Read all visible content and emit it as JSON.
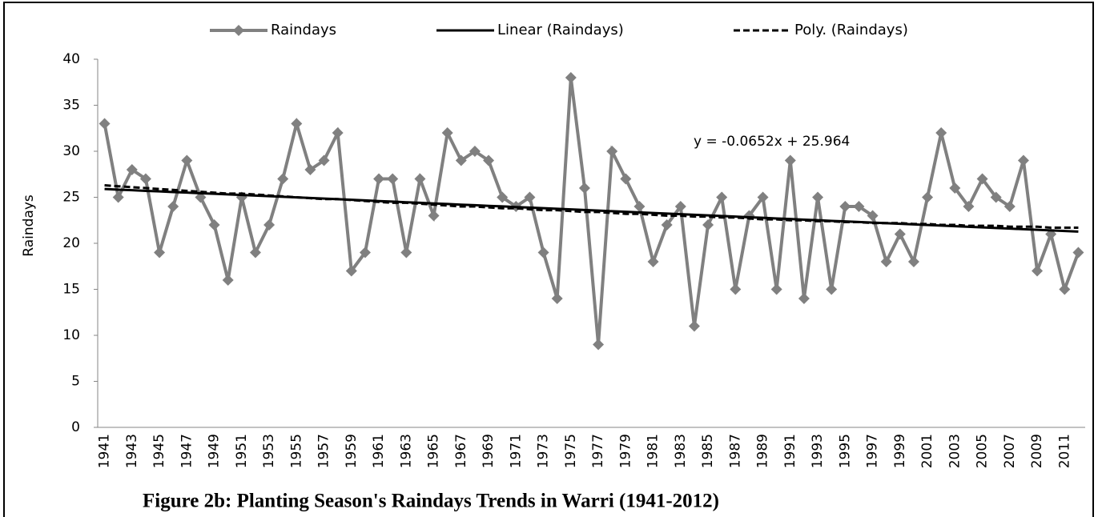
{
  "chart_data": {
    "type": "line",
    "title": "Figure 2b: Planting Season's Raindays Trends in Warri (1941-2012)",
    "y_label": "Raindays",
    "annotation": "y = -0.0652x + 25.964",
    "categories": [
      "1941",
      null,
      "1943",
      null,
      "1945",
      null,
      "1947",
      null,
      "1949",
      null,
      "1951",
      null,
      "1953",
      null,
      "1955",
      null,
      "1957",
      null,
      "1959",
      null,
      "1961",
      null,
      "1963",
      null,
      "1965",
      null,
      "1967",
      null,
      "1969",
      null,
      "1971",
      null,
      "1973",
      null,
      "1975",
      null,
      "1977",
      null,
      "1979",
      null,
      "1981",
      null,
      "1983",
      null,
      "1985",
      null,
      "1987",
      null,
      "1989",
      null,
      "1991",
      null,
      "1993",
      null,
      "1995",
      null,
      "1997",
      null,
      "1999",
      null,
      "2001",
      null,
      "2003",
      null,
      "2005",
      null,
      "2007",
      null,
      "2009",
      null,
      "2011",
      null
    ],
    "series": [
      {
        "name": "Raindays",
        "color": "#808080",
        "style": "solid",
        "marker": "diamond",
        "values": [
          33,
          25,
          28,
          27,
          19,
          24,
          29,
          25,
          22,
          16,
          25,
          19,
          22,
          27,
          33,
          28,
          29,
          32,
          17,
          19,
          27,
          27,
          19,
          27,
          23,
          32,
          29,
          30,
          29,
          25,
          24,
          25,
          19,
          14,
          38,
          26,
          9,
          30,
          27,
          24,
          18,
          22,
          24,
          11,
          22,
          25,
          15,
          23,
          25,
          15,
          29,
          14,
          25,
          15,
          24,
          24,
          23,
          18,
          21,
          18,
          25,
          32,
          26,
          24,
          27,
          25,
          24,
          29,
          17,
          21,
          15,
          19
        ]
      },
      {
        "name": "Linear (Raindays)",
        "color": "#000000",
        "style": "solid",
        "values": [
          25.9,
          25.83,
          25.77,
          25.7,
          25.64,
          25.57,
          25.51,
          25.44,
          25.38,
          25.31,
          25.25,
          25.18,
          25.12,
          25.05,
          24.99,
          24.92,
          24.86,
          24.79,
          24.73,
          24.66,
          24.59,
          24.53,
          24.46,
          24.4,
          24.33,
          24.27,
          24.2,
          24.14,
          24.07,
          24.01,
          23.94,
          23.88,
          23.81,
          23.75,
          23.68,
          23.62,
          23.55,
          23.49,
          23.42,
          23.36,
          23.29,
          23.23,
          23.16,
          23.1,
          23.03,
          22.97,
          22.9,
          22.83,
          22.77,
          22.7,
          22.64,
          22.57,
          22.51,
          22.44,
          22.38,
          22.31,
          22.25,
          22.18,
          22.12,
          22.05,
          21.99,
          21.92,
          21.86,
          21.79,
          21.73,
          21.66,
          21.6,
          21.53,
          21.47,
          21.4,
          21.34,
          21.27
        ]
      },
      {
        "name": "Poly. (Raindays)",
        "color": "#000000",
        "style": "dashed",
        "values": [
          26.3,
          26.2,
          26.1,
          26.0,
          25.9,
          25.8,
          25.7,
          25.6,
          25.5,
          25.4,
          25.4,
          25.3,
          25.2,
          25.1,
          25.0,
          24.9,
          24.8,
          24.8,
          24.7,
          24.6,
          24.5,
          24.4,
          24.4,
          24.3,
          24.2,
          24.1,
          24.0,
          24.0,
          23.9,
          23.8,
          23.8,
          23.7,
          23.6,
          23.6,
          23.5,
          23.4,
          23.4,
          23.3,
          23.2,
          23.2,
          23.1,
          23.0,
          23.0,
          22.9,
          22.9,
          22.8,
          22.8,
          22.7,
          22.6,
          22.6,
          22.5,
          22.5,
          22.4,
          22.4,
          22.3,
          22.3,
          22.2,
          22.2,
          22.2,
          22.1,
          22.1,
          22.0,
          22.0,
          21.9,
          21.9,
          21.9,
          21.8,
          21.8,
          21.8,
          21.7,
          21.7,
          21.7
        ]
      }
    ],
    "ylim": [
      0,
      40
    ],
    "yticks": [
      0,
      5,
      10,
      15,
      20,
      25,
      30,
      35,
      40
    ],
    "grid": false,
    "legend": "top"
  }
}
